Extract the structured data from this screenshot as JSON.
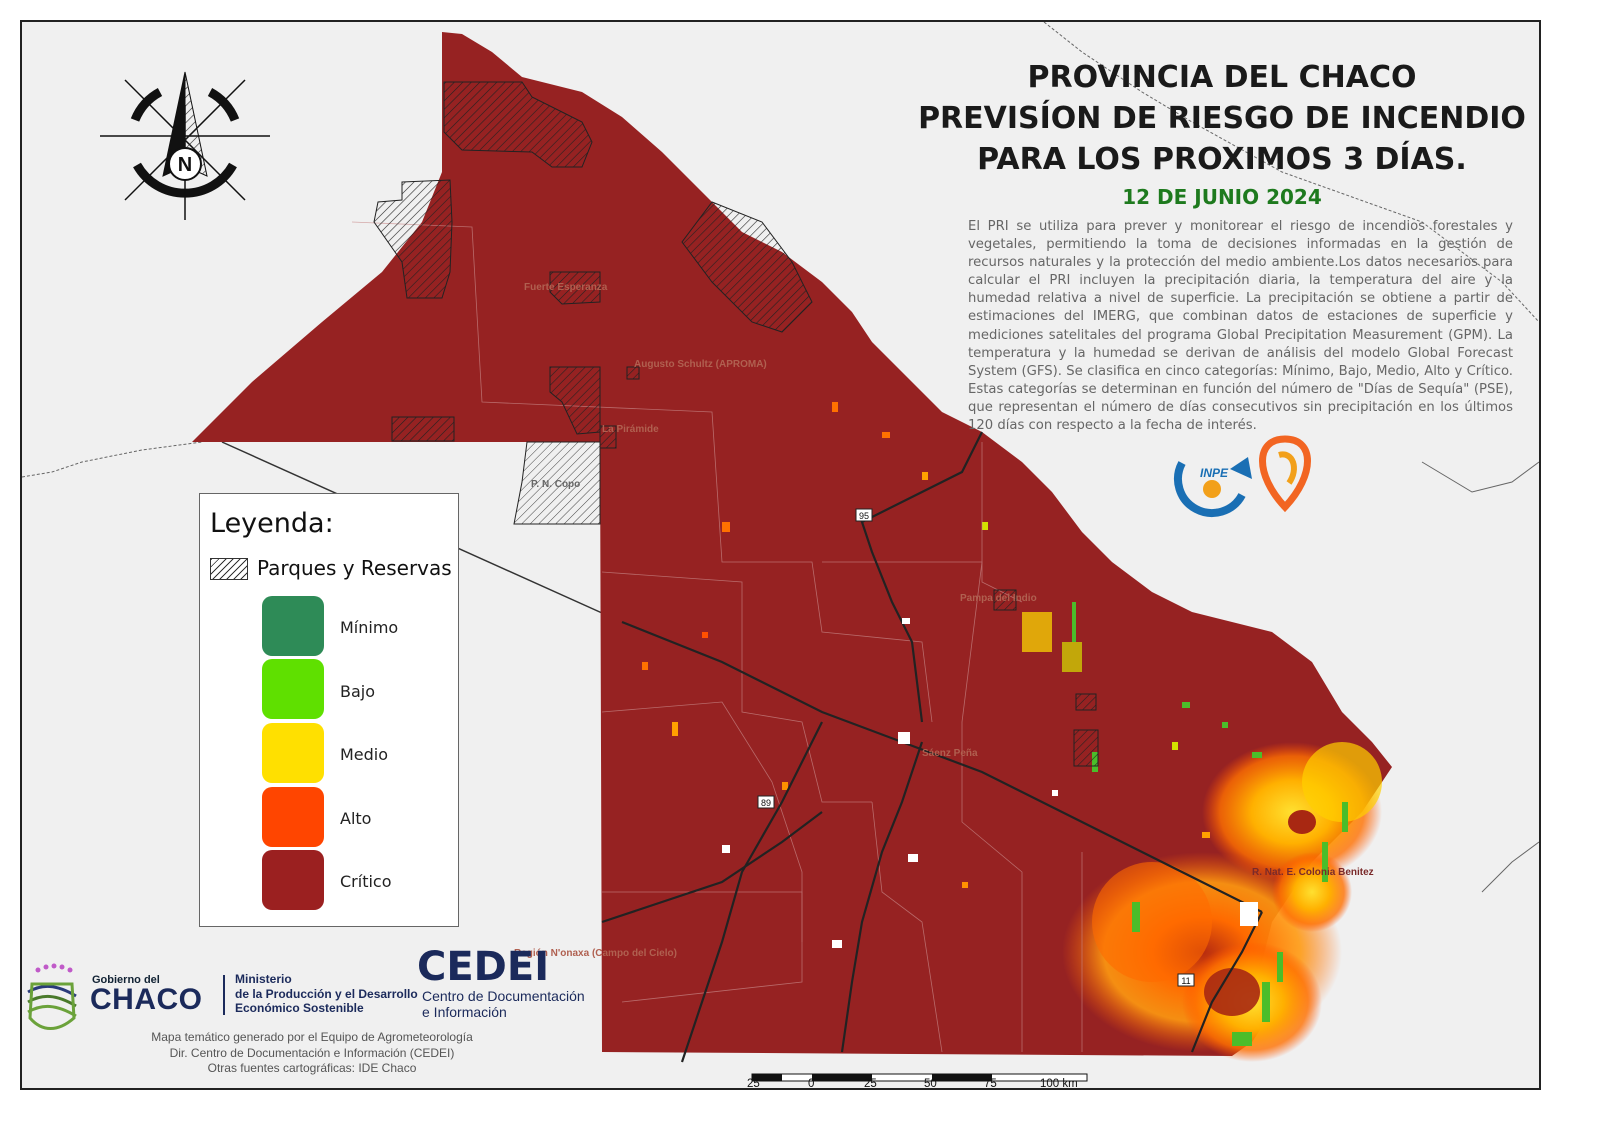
{
  "title": {
    "line1": "PROVINCIA DEL CHACO",
    "line2": "PREVISÍON DE RIESGO DE INCENDIO",
    "line3": "PARA LOS PROXIMOS 3 DÍAS."
  },
  "date": "12 DE JUNIO 2024",
  "description": "El PRI se utiliza para prever y monitorear el riesgo de incendios forestales y vegetales, permitiendo la toma de decisiones informadas en la gestión de recursos naturales y la protección del medio ambiente.Los datos necesarios para calcular el PRI incluyen la precipitación diaria, la temperatura del aire y la humedad relativa a nivel de superficie. La precipitación se obtiene a partir de estimaciones del IMERG, que combinan datos de estaciones de superficie y mediciones satelitales del programa Global Precipitation Measurement (GPM). La temperatura y la humedad se derivan de análisis del modelo Global Forecast System (GFS). Se clasifica en cinco categorías: Mínimo, Bajo, Medio, Alto y Crítico. Estas categorías se determinan en función del número de \"Días de Sequía\" (PSE), que representan el número de días consecutivos sin precipitación en los últimos 120 días con respecto a la fecha de interés.",
  "compass": {
    "letter": "N",
    "icon": "north-arrow-icon"
  },
  "legend": {
    "title": "Leyenda:",
    "parks_label": "Parques y Reservas",
    "items": [
      {
        "label": "Mínimo",
        "color": "#2e8b57"
      },
      {
        "label": "Bajo",
        "color": "#5fe000"
      },
      {
        "label": "Medio",
        "color": "#ffe000"
      },
      {
        "label": "Alto",
        "color": "#ff4500"
      },
      {
        "label": "Crítico",
        "color": "#9b2020"
      }
    ]
  },
  "colors": {
    "critical": "#962222",
    "background": "#f0f0f0"
  },
  "map_labels": {
    "p_n_copo": "P. N. Copo",
    "fuerte_esperanza": "Fuerte Esperanza",
    "augusto_schulz": "Augusto Schultz (APROMA)",
    "la_piramide": "La Pirámide",
    "pampa_del_indio": "Pampa del Indio",
    "colonia_benitez": "R. Nat. E. Colonia Benitez",
    "sd_pena": "Sáenz Peña",
    "napalpi": "Región N'onaxa (Campo del Cielo)"
  },
  "routes": {
    "r95": "95",
    "r89": "89",
    "r11": "11"
  },
  "footer": {
    "gov_small": "Gobierno del",
    "gov_big": "CHACO",
    "ministry_1": "Ministerio",
    "ministry_2": "de la Producción y el Desarrollo",
    "ministry_3": "Económico Sostenible",
    "cedei": "CEDEI",
    "cedei_sub_1": "Centro de Documentación",
    "cedei_sub_2": "e Información",
    "credits_1": "Mapa temático generado por el Equipo de Agrometeorología",
    "credits_2": "Dir. Centro de Documentación e Información (CEDEI)",
    "credits_3": "Otras fuentes cartográficas: IDE Chaco"
  },
  "scale": {
    "labels": [
      "25",
      "0",
      "25",
      "50",
      "75",
      "100 km"
    ]
  },
  "logos": {
    "inpe": "INPE"
  }
}
